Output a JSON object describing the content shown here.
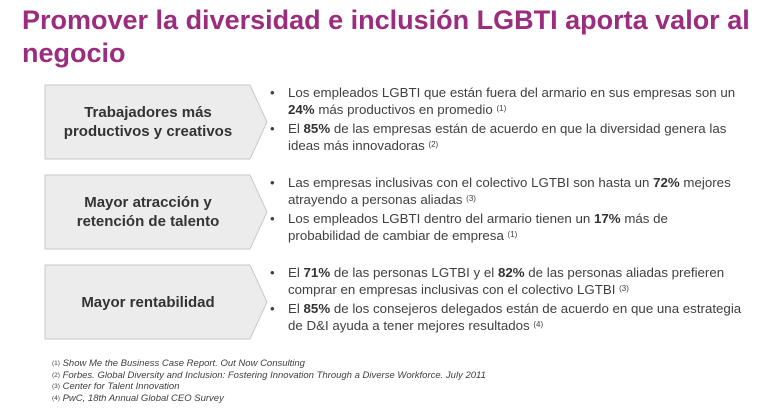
{
  "title": "Promover la diversidad e inclusión LGBTI aporta valor al negocio",
  "colors": {
    "title": "#9b2c7e",
    "chevron_fill": "#ececec",
    "chevron_stroke": "#c9c9c9"
  },
  "rows": [
    {
      "label": "Trabajadores más\nproductivos y creativos",
      "bullets": [
        {
          "pre": "Los empleados LGBTI que están fuera del armario en sus empresas son un ",
          "bold": "24%",
          "post": " más productivos en promedio ",
          "ref": "(1)"
        },
        {
          "pre": "El ",
          "bold": "85%",
          "post": " de las empresas están de acuerdo en que la diversidad genera las ideas más innovadoras ",
          "ref": "(2)"
        }
      ]
    },
    {
      "label": "Mayor atracción y\nretención de talento",
      "bullets": [
        {
          "pre": "Las empresas inclusivas con el colectivo LGTBI son hasta un ",
          "bold": "72%",
          "post": " mejores atrayendo a personas aliadas ",
          "ref": "(3)"
        },
        {
          "pre": "Los empleados LGBTI dentro del armario tienen un ",
          "bold": "17%",
          "post": " más de probabilidad de cambiar de empresa ",
          "ref": "(1)"
        }
      ]
    },
    {
      "label": "Mayor rentabilidad",
      "bullets": [
        {
          "pre": "El ",
          "bold": "71%",
          "mid": " de las personas LGTBI y el ",
          "bold2": "82%",
          "post": " de las personas aliadas prefieren comprar en empresas inclusivas con el colectivo LGTBI ",
          "ref": "(3)"
        },
        {
          "pre": "El ",
          "bold": "85%",
          "post": " de los consejeros delegados están de acuerdo en que una estrategia de D&I ayuda a tener mejores resultados ",
          "ref": "(4)"
        }
      ]
    }
  ],
  "footnotes": [
    {
      "num": "(1)",
      "text": "Show Me the Business Case Report. Out Now Consulting"
    },
    {
      "num": "(2)",
      "text": "Forbes. Global Diversity and Inclusion: Fostering Innovation Through a Diverse Workforce. July 2011"
    },
    {
      "num": "(3)",
      "text": "Center for Talent Innovation"
    },
    {
      "num": "(4)",
      "text": "PwC, 18th Annual Global CEO Survey"
    }
  ]
}
